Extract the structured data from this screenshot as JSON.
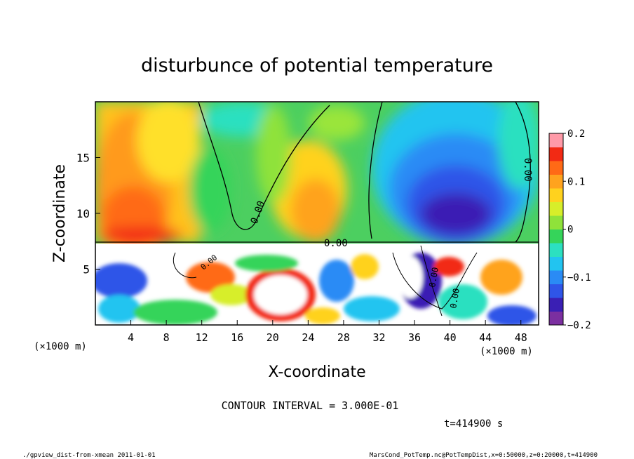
{
  "chart_data": {
    "type": "heatmap",
    "title": "disturbunce of potential temperature",
    "xlabel": "X-coordinate",
    "ylabel": "Z-coordinate",
    "x_unit_left": "(×1000 m)",
    "x_unit_right": "(×1000 m)",
    "xlim": [
      0,
      50
    ],
    "ylim": [
      0,
      20
    ],
    "xticks": [
      "4",
      "8",
      "12",
      "16",
      "20",
      "24",
      "28",
      "32",
      "36",
      "40",
      "44",
      "48"
    ],
    "yticks": [
      "5",
      "10",
      "15"
    ],
    "colorbar": {
      "range": [
        -0.2,
        0.2
      ],
      "ticks": [
        "0.2",
        "0.1",
        "0",
        "−0.1",
        "−0.2"
      ],
      "colors": [
        "#7b2fa0",
        "#3a1fb4",
        "#2f55e8",
        "#2a8bf5",
        "#22c4f0",
        "#2ce0c0",
        "#35d45a",
        "#8fe23a",
        "#d7ee2a",
        "#ffd21e",
        "#ffa31e",
        "#ff6a16",
        "#f22a14",
        "#ff9aa8"
      ]
    },
    "contour_labels": [
      "0.00",
      "0.00",
      "0.00",
      "0.00",
      "0.00",
      "0.00"
    ],
    "contour_interval": "CONTOUR INTERVAL = 3.000E-01",
    "time_label": "t=414900 s"
  },
  "footer": {
    "left": "./gpview_dist-from-xmean   2011-01-01",
    "right": "MarsCond_PotTemp.nc@PotTempDist,x=0:50000,z=0:20000,t=414900"
  }
}
